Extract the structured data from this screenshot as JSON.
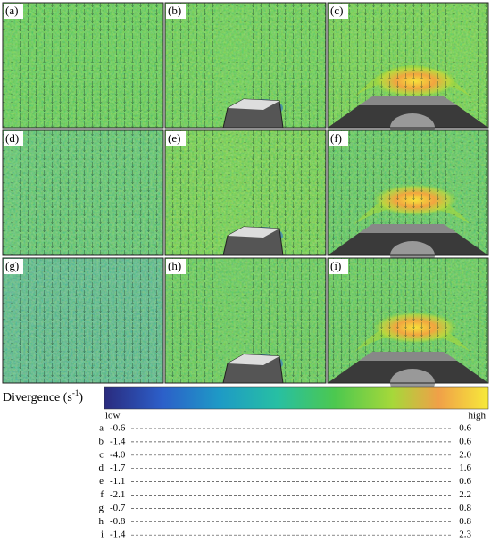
{
  "panels": [
    "(a)",
    "(b)",
    "(c)",
    "(d)",
    "(e)",
    "(f)",
    "(g)",
    "(h)",
    "(i)"
  ],
  "colorbar": {
    "label": "Divergence (s",
    "label_exponent": "-1",
    "label_end": ")",
    "low": "low",
    "high": "high"
  },
  "table": {
    "rows": [
      [
        "a",
        "-0.6",
        "0.6"
      ],
      [
        "b",
        "-1.4",
        "0.6"
      ],
      [
        "c",
        "-4.0",
        "2.0"
      ],
      [
        "d",
        "-1.7",
        "1.6"
      ],
      [
        "e",
        "-1.1",
        "0.6"
      ],
      [
        "f",
        "-2.1",
        "2.2"
      ],
      [
        "g",
        "-0.7",
        "0.8"
      ],
      [
        "h",
        "-0.8",
        "0.8"
      ],
      [
        "i",
        "-1.4",
        "2.3"
      ]
    ]
  }
}
